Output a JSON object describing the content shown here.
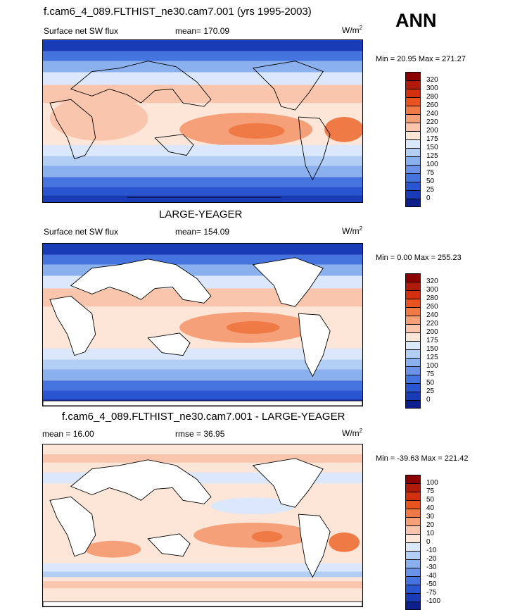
{
  "header": {
    "title": "f.cam6_4_089.FLTHIST_ne30.cam7.001 (yrs 1995-2003)",
    "season": "ANN"
  },
  "panels": [
    {
      "id": "test",
      "title": "",
      "left_label": "Surface net SW flux",
      "center_label": "mean= 170.09",
      "units_base": "W/m",
      "units_exp": "2",
      "minmax": "Min =  20.95 Max = 271.27"
    },
    {
      "id": "control",
      "title": "LARGE-YEAGER",
      "left_label": "Surface net SW flux",
      "center_label": "mean= 154.09",
      "units_base": "W/m",
      "units_exp": "2",
      "minmax": "Min =   0.00 Max = 255.23"
    },
    {
      "id": "diff",
      "title": "f.cam6_4_089.FLTHIST_ne30.cam7.001 - LARGE-YEAGER",
      "left_label": "mean =  16.00",
      "center_label": "rmse =  36.95",
      "units_base": "W/m",
      "units_exp": "2",
      "minmax": "Min = -39.63 Max = 221.42"
    }
  ],
  "chart_data": [
    {
      "type": "heatmap",
      "title": "f.cam6_4_089.FLTHIST_ne30.cam7.001 (yrs 1995-2003)",
      "variable": "Surface net SW flux",
      "mean": 170.09,
      "min": 20.95,
      "max": 271.27,
      "units": "W/m2",
      "colorbar_levels": [
        320,
        300,
        280,
        260,
        240,
        220,
        200,
        175,
        150,
        125,
        100,
        75,
        50,
        25,
        0
      ],
      "colorbar_colors": [
        "#8b0000",
        "#b01a0a",
        "#d2300f",
        "#e8531f",
        "#f07a45",
        "#f5a079",
        "#f9c6ad",
        "#fde6d8",
        "#dbe8fb",
        "#b3cef5",
        "#8bb0ee",
        "#6a93e8",
        "#4574de",
        "#2a55d0",
        "#1a3bb6",
        "#0d1f8a"
      ]
    },
    {
      "type": "heatmap",
      "title": "LARGE-YEAGER",
      "variable": "Surface net SW flux",
      "mean": 154.09,
      "min": 0.0,
      "max": 255.23,
      "units": "W/m2",
      "colorbar_levels": [
        320,
        300,
        280,
        260,
        240,
        220,
        200,
        175,
        150,
        125,
        100,
        75,
        50,
        25,
        0
      ],
      "colorbar_colors": [
        "#8b0000",
        "#b01a0a",
        "#d2300f",
        "#e8531f",
        "#f07a45",
        "#f5a079",
        "#f9c6ad",
        "#fde6d8",
        "#dbe8fb",
        "#b3cef5",
        "#8bb0ee",
        "#6a93e8",
        "#4574de",
        "#2a55d0",
        "#1a3bb6",
        "#0d1f8a"
      ]
    },
    {
      "type": "heatmap",
      "title": "f.cam6_4_089.FLTHIST_ne30.cam7.001 - LARGE-YEAGER",
      "mean": 16.0,
      "rmse": 36.95,
      "min": -39.63,
      "max": 221.42,
      "units": "W/m2",
      "colorbar_levels": [
        100,
        75,
        50,
        40,
        30,
        20,
        10,
        0,
        -10,
        -20,
        -30,
        -40,
        -50,
        -75,
        -100
      ],
      "colorbar_colors": [
        "#8b0000",
        "#b01a0a",
        "#d2300f",
        "#e8531f",
        "#f07a45",
        "#f5a079",
        "#f9c6ad",
        "#fde6d8",
        "#dbe8fb",
        "#b3cef5",
        "#8bb0ee",
        "#6a93e8",
        "#4574de",
        "#2a55d0",
        "#1a3bb6",
        "#0d1f8a"
      ]
    }
  ]
}
